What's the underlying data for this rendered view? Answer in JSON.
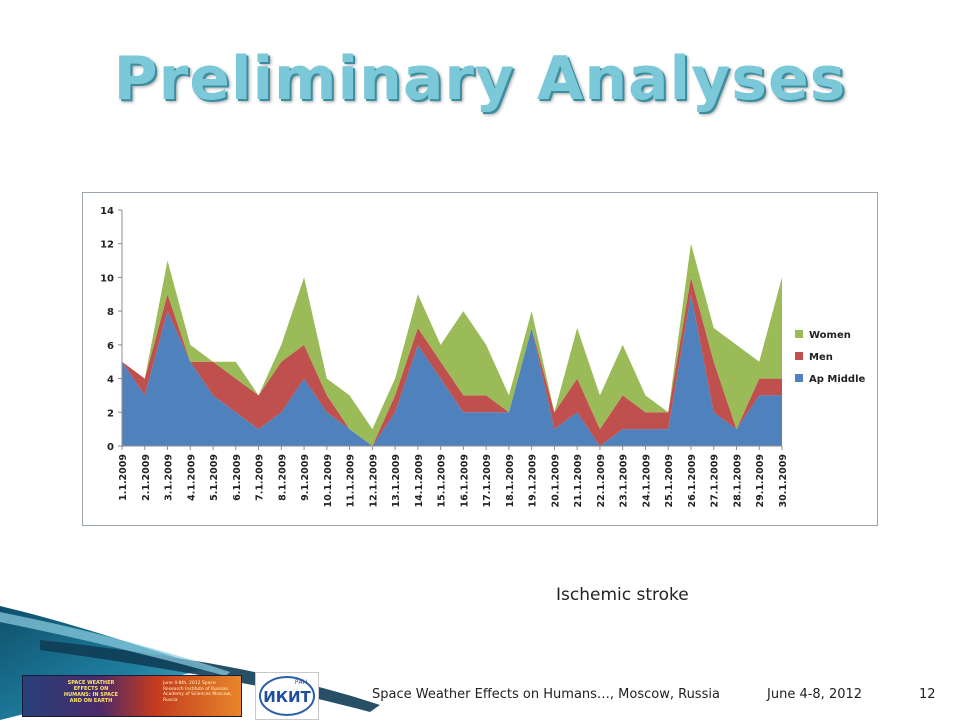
{
  "slide": {
    "title": "Preliminary Analyses",
    "caption": "Ischemic stroke",
    "footer_title": "Space Weather Effects on Humans…, Moscow, Russia",
    "footer_date": "June 4-8, 2012",
    "page_number": "12",
    "banner_left_text": "SPACE WEATHER EFFECTS ON HUMANS: IN SPACE AND ON EARTH",
    "banner_right_text": "June 4-8th, 2012 Space Research Institute of Russian Academy of Sciences Moscow, Russia",
    "logo_text": "ИКИТ",
    "logo_badge": "РАН"
  },
  "colors": {
    "women": "#9bbb59",
    "men": "#c0504d",
    "ap_middle": "#4f81bd",
    "title": "#7bc8d8",
    "footer_band": "#1f6f8b"
  },
  "chart_data": {
    "type": "area",
    "stacked": true,
    "categories": [
      "1.1.2009",
      "2.1.2009",
      "3.1.2009",
      "4.1.2009",
      "5.1.2009",
      "6.1.2009",
      "7.1.2009",
      "8.1.2009",
      "9.1.2009",
      "10.1.2009",
      "11.1.2009",
      "12.1.2009",
      "13.1.2009",
      "14.1.2009",
      "15.1.2009",
      "16.1.2009",
      "17.1.2009",
      "18.1.2009",
      "19.1.2009",
      "20.1.2009",
      "21.1.2009",
      "22.1.2009",
      "23.1.2009",
      "24.1.2009",
      "25.1.2009",
      "26.1.2009",
      "27.1.2009",
      "28.1.2009",
      "29.1.2009",
      "30.1.2009"
    ],
    "series": [
      {
        "name": "Ap Middle",
        "values": [
          5,
          3,
          8,
          5,
          3,
          2,
          1,
          2,
          4,
          2,
          1,
          0,
          2,
          6,
          4,
          2,
          2,
          2,
          7,
          1,
          2,
          0,
          1,
          1,
          1,
          9,
          2,
          1,
          3,
          3
        ]
      },
      {
        "name": "Men",
        "values": [
          0,
          1,
          1,
          0,
          2,
          2,
          2,
          3,
          2,
          1,
          0,
          0,
          1,
          1,
          1,
          1,
          1,
          0,
          0,
          1,
          2,
          1,
          2,
          1,
          1,
          1,
          3,
          0,
          1,
          1
        ]
      },
      {
        "name": "Women",
        "values": [
          0,
          0,
          2,
          1,
          0,
          1,
          0,
          1,
          4,
          1,
          2,
          1,
          1,
          2,
          1,
          5,
          3,
          1,
          1,
          0,
          3,
          2,
          3,
          1,
          0,
          2,
          2,
          5,
          1,
          6
        ]
      }
    ],
    "ylim": [
      0,
      14
    ],
    "yticks": [
      0,
      2,
      4,
      6,
      8,
      10,
      12,
      14
    ],
    "grid": false,
    "legend": "right"
  }
}
